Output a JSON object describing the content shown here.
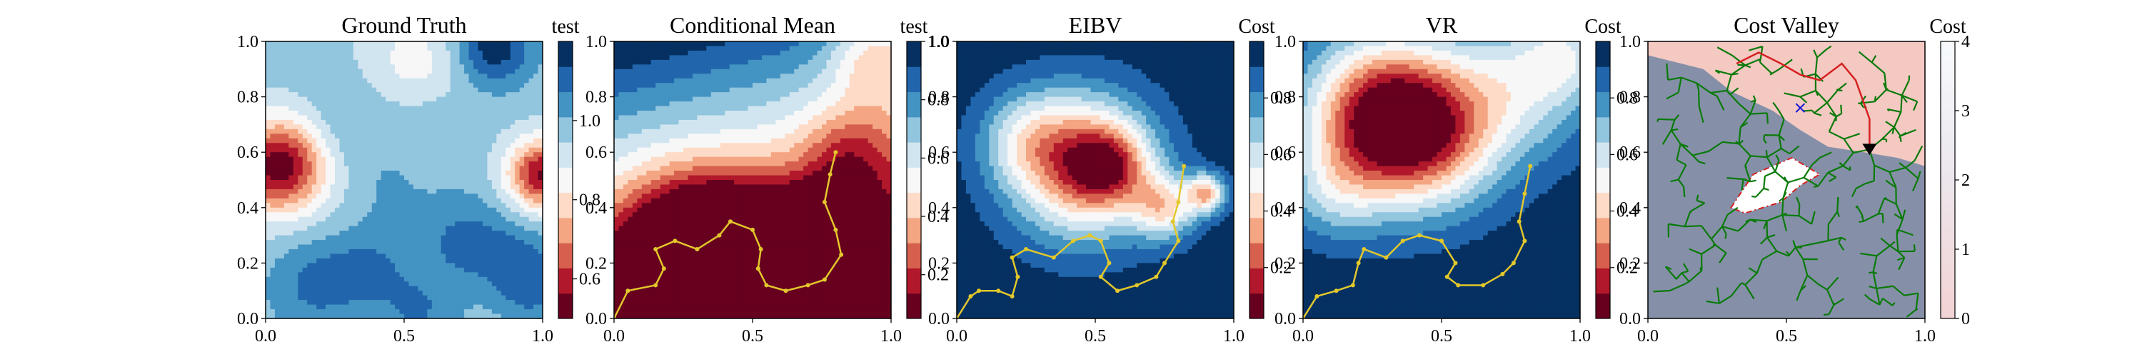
{
  "figure": {
    "background": "#ffffff"
  },
  "colors": {
    "rdbu": [
      "#67001f",
      "#b2182b",
      "#d6604d",
      "#f4a582",
      "#fddbc7",
      "#f7f7f7",
      "#d1e5f0",
      "#92c5de",
      "#4393c3",
      "#2166ac",
      "#053061"
    ],
    "cost_valley": [
      "#f9e5e5",
      "#f4c9c2",
      "#d8d8e6",
      "#8590a8",
      "#5e6c88"
    ],
    "path": "#e3c82c",
    "tree": "#0a7a0a",
    "route": "#d62020",
    "marker": "#000000",
    "cross": "#1a1ad6"
  },
  "chart_data": [
    {
      "type": "heatmap",
      "title": "Ground Truth",
      "colorbar_label": "test",
      "xlim": [
        0,
        1
      ],
      "ylim": [
        0,
        1
      ],
      "x_ticks": [
        "0.0",
        "0.5",
        "1.0"
      ],
      "y_ticks": [
        "0.0",
        "0.2",
        "0.4",
        "0.6",
        "0.8",
        "1.0"
      ],
      "colorbar": {
        "min": 0.5,
        "max": 1.2,
        "ticks": [
          "0.6",
          "0.8",
          "1.0"
        ],
        "tick_values": [
          0.6,
          0.8,
          1.0
        ]
      },
      "field": {
        "base": 0.97,
        "blobs": [
          [
            0.05,
            0.55,
            0.12,
            -0.45
          ],
          [
            1.0,
            0.52,
            0.09,
            -0.42
          ],
          [
            0.82,
            0.98,
            0.1,
            0.22
          ],
          [
            0.55,
            0.92,
            0.14,
            -0.12
          ],
          [
            0.18,
            0.12,
            0.12,
            0.12
          ],
          [
            0.38,
            0.18,
            0.1,
            0.1
          ],
          [
            0.55,
            0.02,
            0.1,
            0.1
          ],
          [
            0.72,
            0.28,
            0.12,
            0.12
          ],
          [
            0.92,
            0.2,
            0.1,
            0.11
          ],
          [
            0.3,
            0.7,
            0.12,
            0.06
          ],
          [
            0.6,
            0.72,
            0.1,
            0.05
          ],
          [
            0.45,
            0.45,
            0.1,
            0.04
          ],
          [
            0.96,
            0.08,
            0.08,
            0.08
          ]
        ]
      }
    },
    {
      "type": "heatmap",
      "title": "Conditional Mean",
      "colorbar_label": "test",
      "xlim": [
        0,
        1
      ],
      "ylim": [
        0,
        1
      ],
      "x_ticks": [
        "0.0",
        "0.5",
        "1.0"
      ],
      "y_ticks": [
        "0.0",
        "0.2",
        "0.4",
        "0.6",
        "0.8",
        "1.0"
      ],
      "colorbar": {
        "min": 0.05,
        "max": 1.0,
        "ticks": [
          "0.2",
          "0.4",
          "0.6",
          "0.8",
          "1.0"
        ],
        "tick_values": [
          0.2,
          0.4,
          0.6,
          0.8,
          1.0
        ]
      },
      "field": {
        "base": 0.05,
        "gx": -0.25,
        "gy": 0.97,
        "blobs": [
          [
            0.3,
            0.25,
            0.18,
            -0.7
          ],
          [
            0.6,
            0.2,
            0.16,
            -0.6
          ],
          [
            0.8,
            0.35,
            0.1,
            -0.35
          ],
          [
            0.1,
            0.1,
            0.12,
            -0.3
          ],
          [
            0.95,
            0.95,
            0.12,
            -0.3
          ],
          [
            0.85,
            0.6,
            0.12,
            -0.25
          ]
        ]
      },
      "path": [
        [
          0.0,
          0.0
        ],
        [
          0.05,
          0.1
        ],
        [
          0.15,
          0.12
        ],
        [
          0.18,
          0.18
        ],
        [
          0.15,
          0.25
        ],
        [
          0.22,
          0.28
        ],
        [
          0.3,
          0.25
        ],
        [
          0.38,
          0.3
        ],
        [
          0.42,
          0.35
        ],
        [
          0.5,
          0.32
        ],
        [
          0.53,
          0.25
        ],
        [
          0.52,
          0.18
        ],
        [
          0.55,
          0.12
        ],
        [
          0.62,
          0.1
        ],
        [
          0.7,
          0.12
        ],
        [
          0.76,
          0.14
        ],
        [
          0.82,
          0.23
        ],
        [
          0.8,
          0.32
        ],
        [
          0.76,
          0.42
        ],
        [
          0.78,
          0.52
        ],
        [
          0.8,
          0.6
        ]
      ]
    },
    {
      "type": "heatmap",
      "title": "EIBV",
      "colorbar_label": "Cost",
      "xlim": [
        0,
        1
      ],
      "ylim": [
        0,
        1
      ],
      "x_ticks": [
        "0.0",
        "0.5",
        "1.0"
      ],
      "y_ticks": [
        "0.0",
        "0.2",
        "0.4",
        "0.6",
        "0.8",
        "1.0"
      ],
      "colorbar": {
        "min": 0.02,
        "max": 1.0,
        "ticks": [
          "0.2",
          "0.4",
          "0.6",
          "0.8"
        ],
        "tick_values": [
          0.2,
          0.4,
          0.6,
          0.8
        ]
      },
      "field": {
        "base": 0.97,
        "blobs": [
          [
            0.45,
            0.55,
            0.18,
            -0.7
          ],
          [
            0.55,
            0.55,
            0.1,
            -0.4
          ],
          [
            0.9,
            0.45,
            0.05,
            -0.55
          ],
          [
            0.75,
            0.4,
            0.08,
            -0.45
          ],
          [
            0.25,
            0.65,
            0.12,
            -0.25
          ]
        ]
      },
      "path": [
        [
          0.0,
          0.0
        ],
        [
          0.05,
          0.08
        ],
        [
          0.08,
          0.1
        ],
        [
          0.15,
          0.1
        ],
        [
          0.2,
          0.08
        ],
        [
          0.22,
          0.15
        ],
        [
          0.2,
          0.22
        ],
        [
          0.25,
          0.25
        ],
        [
          0.35,
          0.22
        ],
        [
          0.42,
          0.28
        ],
        [
          0.48,
          0.3
        ],
        [
          0.52,
          0.28
        ],
        [
          0.55,
          0.2
        ],
        [
          0.52,
          0.15
        ],
        [
          0.58,
          0.1
        ],
        [
          0.65,
          0.12
        ],
        [
          0.72,
          0.15
        ],
        [
          0.75,
          0.2
        ],
        [
          0.8,
          0.28
        ],
        [
          0.78,
          0.35
        ],
        [
          0.8,
          0.42
        ],
        [
          0.82,
          0.55
        ]
      ]
    },
    {
      "type": "heatmap",
      "title": "VR",
      "colorbar_label": "Cost",
      "xlim": [
        0,
        1
      ],
      "ylim": [
        0,
        1
      ],
      "x_ticks": [
        "0.0",
        "0.5",
        "1.0"
      ],
      "y_ticks": [
        "0.0",
        "0.2",
        "0.4",
        "0.6",
        "0.8",
        "1.0"
      ],
      "colorbar": {
        "min": 0.02,
        "max": 1.0,
        "ticks": [
          "0.2",
          "0.4",
          "0.6",
          "0.8"
        ],
        "tick_values": [
          0.2,
          0.4,
          0.6,
          0.8
        ]
      },
      "field": {
        "base": 0.97,
        "blobs": [
          [
            0.3,
            0.72,
            0.2,
            -0.95
          ],
          [
            0.5,
            0.65,
            0.18,
            -0.35
          ],
          [
            0.1,
            0.45,
            0.12,
            -0.2
          ],
          [
            0.8,
            0.85,
            0.18,
            -0.35
          ],
          [
            0.95,
            0.95,
            0.1,
            -0.25
          ]
        ]
      },
      "path": [
        [
          0.0,
          0.0
        ],
        [
          0.05,
          0.08
        ],
        [
          0.12,
          0.1
        ],
        [
          0.18,
          0.12
        ],
        [
          0.2,
          0.2
        ],
        [
          0.22,
          0.25
        ],
        [
          0.3,
          0.22
        ],
        [
          0.36,
          0.28
        ],
        [
          0.42,
          0.3
        ],
        [
          0.5,
          0.28
        ],
        [
          0.55,
          0.2
        ],
        [
          0.52,
          0.15
        ],
        [
          0.56,
          0.12
        ],
        [
          0.65,
          0.12
        ],
        [
          0.72,
          0.16
        ],
        [
          0.76,
          0.2
        ],
        [
          0.8,
          0.28
        ],
        [
          0.78,
          0.35
        ],
        [
          0.8,
          0.45
        ],
        [
          0.82,
          0.55
        ]
      ]
    },
    {
      "type": "heatmap",
      "title": "Cost Valley",
      "colorbar_label": "Cost",
      "xlim": [
        0,
        1
      ],
      "ylim": [
        0,
        1
      ],
      "x_ticks": [
        "0.0",
        "0.5",
        "1.0"
      ],
      "y_ticks": [
        "0.0",
        "0.2",
        "0.4",
        "0.6",
        "0.8",
        "1.0"
      ],
      "colorbar": {
        "min": 0,
        "max": 4,
        "ticks": [
          "0",
          "1",
          "2",
          "3",
          "4"
        ],
        "tick_values": [
          0,
          1,
          2,
          3,
          4
        ]
      },
      "high_cost_region": [
        [
          0.0,
          1.0
        ],
        [
          0.0,
          0.95
        ],
        [
          0.2,
          0.9
        ],
        [
          0.3,
          0.82
        ],
        [
          0.45,
          0.75
        ],
        [
          0.55,
          0.68
        ],
        [
          0.65,
          0.62
        ],
        [
          0.78,
          0.6
        ],
        [
          0.9,
          0.58
        ],
        [
          1.0,
          0.55
        ],
        [
          1.0,
          1.0
        ]
      ],
      "obstacle": [
        [
          0.3,
          0.4
        ],
        [
          0.38,
          0.52
        ],
        [
          0.52,
          0.58
        ],
        [
          0.62,
          0.52
        ],
        [
          0.55,
          0.48
        ],
        [
          0.48,
          0.42
        ],
        [
          0.35,
          0.38
        ]
      ],
      "route": [
        [
          0.8,
          0.6
        ],
        [
          0.8,
          0.72
        ],
        [
          0.75,
          0.86
        ],
        [
          0.7,
          0.92
        ],
        [
          0.62,
          0.86
        ],
        [
          0.55,
          0.88
        ],
        [
          0.48,
          0.92
        ],
        [
          0.4,
          0.96
        ],
        [
          0.32,
          0.92
        ]
      ],
      "cross": [
        0.55,
        0.76
      ],
      "current": [
        0.8,
        0.61
      ],
      "tree_root": [
        0.8,
        0.61
      ]
    }
  ]
}
